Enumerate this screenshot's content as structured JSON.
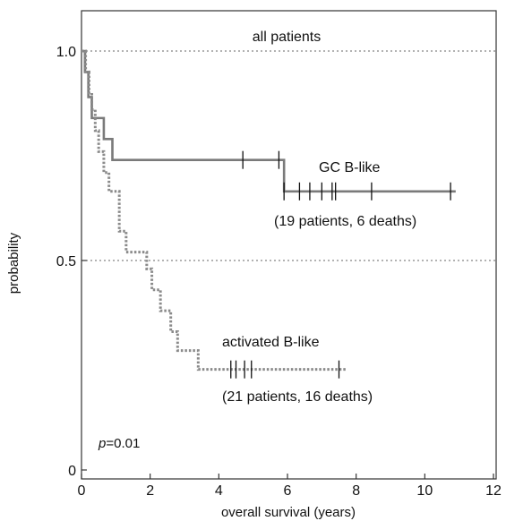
{
  "chart_data": {
    "type": "line",
    "title": "",
    "xlabel": "overall survival (years)",
    "ylabel": "probability",
    "xlim": [
      0,
      12
    ],
    "ylim": [
      0,
      1.05
    ],
    "x_ticks": [
      "0",
      "2",
      "4",
      "6",
      "8",
      "10",
      "12"
    ],
    "y_ticks": [
      "0",
      "0.5",
      "1.0"
    ],
    "reference_lines": [
      1.0,
      0.5
    ],
    "annotations": {
      "all_patients": "all patients",
      "gc_label": "GC B-like",
      "gc_counts": "(19 patients, 6 deaths)",
      "abc_label": "activated B-like",
      "abc_counts": "(21 patients, 16 deaths)",
      "p_italic": "p",
      "p_rest": "=0.01"
    },
    "series": [
      {
        "name": "GC B-like",
        "style": "solid",
        "color": "#7a7a7a",
        "steps": [
          [
            0,
            1.0
          ],
          [
            0.1,
            0.95
          ],
          [
            0.2,
            0.89
          ],
          [
            0.3,
            0.84
          ],
          [
            0.65,
            0.79
          ],
          [
            0.9,
            0.74
          ],
          [
            5.9,
            0.665
          ],
          [
            10.9,
            0.665
          ]
        ],
        "censors": [
          4.7,
          5.75,
          5.9,
          6.35,
          6.65,
          7.0,
          7.3,
          7.4,
          8.45,
          10.75
        ]
      },
      {
        "name": "activated B-like",
        "style": "dotted",
        "color": "#8a8a8a",
        "steps": [
          [
            0,
            1.0
          ],
          [
            0.12,
            0.95
          ],
          [
            0.22,
            0.9
          ],
          [
            0.3,
            0.86
          ],
          [
            0.4,
            0.81
          ],
          [
            0.5,
            0.76
          ],
          [
            0.65,
            0.71
          ],
          [
            0.8,
            0.665
          ],
          [
            1.1,
            0.57
          ],
          [
            1.3,
            0.52
          ],
          [
            1.9,
            0.48
          ],
          [
            2.05,
            0.43
          ],
          [
            2.3,
            0.38
          ],
          [
            2.6,
            0.33
          ],
          [
            2.8,
            0.285
          ],
          [
            3.4,
            0.24
          ],
          [
            7.7,
            0.24
          ]
        ],
        "censors": [
          4.35,
          4.5,
          4.75,
          4.95,
          7.5
        ]
      }
    ]
  }
}
